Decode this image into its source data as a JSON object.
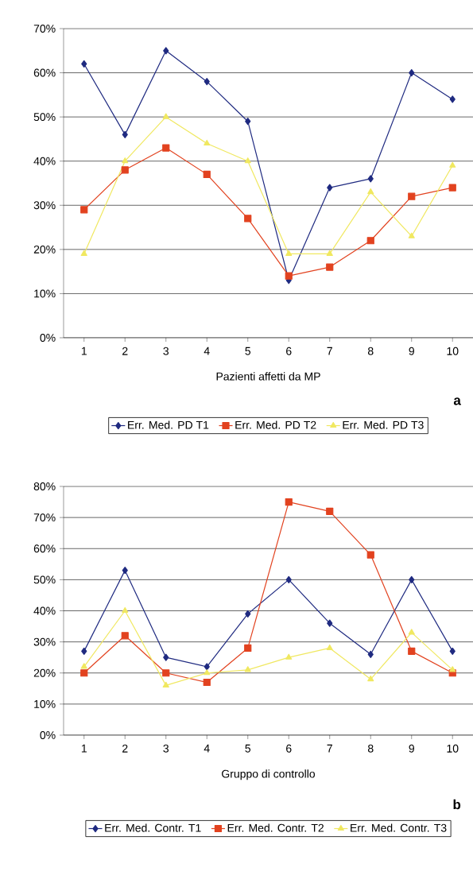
{
  "chart_data": [
    {
      "type": "line",
      "xlabel": "Pazienti affetti da MP",
      "categories": [
        "1",
        "2",
        "3",
        "4",
        "5",
        "6",
        "7",
        "8",
        "9",
        "10"
      ],
      "series": [
        {
          "name": "Err. Med. PD T1",
          "color": "#1f2a80",
          "marker": "diamond",
          "values": [
            62,
            46,
            65,
            58,
            49,
            13,
            34,
            36,
            60,
            54
          ]
        },
        {
          "name": "Err. Med. PD T2",
          "color": "#e2421f",
          "marker": "square",
          "values": [
            29,
            38,
            43,
            37,
            27,
            14,
            16,
            22,
            32,
            34
          ]
        },
        {
          "name": "Err. Med. PD T3",
          "color": "#f0e860",
          "marker": "triangle",
          "values": [
            19,
            40,
            50,
            44,
            40,
            19,
            19,
            33,
            23,
            39
          ]
        }
      ],
      "ylim": [
        0,
        70
      ],
      "yticks": [
        {
          "value": 0,
          "label": "0%"
        },
        {
          "value": 10,
          "label": "10%"
        },
        {
          "value": 20,
          "label": "20%"
        },
        {
          "value": 30,
          "label": "30%"
        },
        {
          "value": 40,
          "label": "40%"
        },
        {
          "value": 50,
          "label": "50%"
        },
        {
          "value": 60,
          "label": "60%"
        },
        {
          "value": 70,
          "label": "70%"
        }
      ],
      "grid": "y",
      "legend": "bottom",
      "line_style": "solid",
      "annotations": [
        "a"
      ]
    },
    {
      "type": "line",
      "xlabel": "Gruppo di controllo",
      "categories": [
        "1",
        "2",
        "3",
        "4",
        "5",
        "6",
        "7",
        "8",
        "9",
        "10"
      ],
      "series": [
        {
          "name": "Err. Med. Contr. T1",
          "color": "#1f2a80",
          "marker": "diamond",
          "values": [
            27,
            53,
            25,
            22,
            39,
            50,
            36,
            26,
            50,
            27
          ]
        },
        {
          "name": "Err. Med. Contr. T2",
          "color": "#e2421f",
          "marker": "square",
          "values": [
            20,
            32,
            20,
            17,
            28,
            75,
            72,
            58,
            27,
            20
          ]
        },
        {
          "name": "Err. Med. Contr. T3",
          "color": "#f0e860",
          "marker": "triangle",
          "values": [
            22,
            40,
            16,
            20,
            21,
            25,
            28,
            18,
            33,
            21
          ]
        }
      ],
      "ylim": [
        0,
        80
      ],
      "yticks": [
        {
          "value": 0,
          "label": "0%"
        },
        {
          "value": 10,
          "label": "10%"
        },
        {
          "value": 20,
          "label": "20%"
        },
        {
          "value": 30,
          "label": "30%"
        },
        {
          "value": 40,
          "label": "40%"
        },
        {
          "value": 50,
          "label": "50%"
        },
        {
          "value": 60,
          "label": "60%"
        },
        {
          "value": 70,
          "label": "70%"
        },
        {
          "value": 80,
          "label": "80%"
        }
      ],
      "grid": "y",
      "legend": "bottom",
      "line_style": "solid",
      "annotations": [
        "b"
      ]
    }
  ]
}
